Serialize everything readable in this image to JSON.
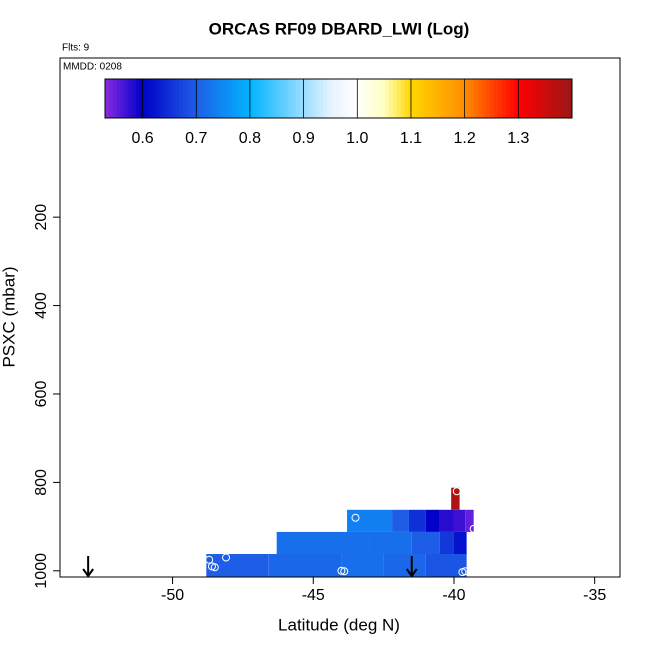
{
  "chart_data": {
    "type": "heatmap",
    "title": "ORCAS RF09 DBARD_LWI (Log)",
    "subtitle": "Flts: 9",
    "annotation": "MMDD: 0208",
    "x_label": "Latitude (deg N)",
    "y_label": "PSXC (mbar)",
    "xlim": [
      -54,
      -34.1
    ],
    "xticks": [
      -50,
      -45,
      -40,
      -35
    ],
    "ylim": [
      1014,
      -160
    ],
    "yticks": [
      200,
      400,
      600,
      800,
      1000
    ],
    "colorbar_lim": [
      0.53,
      1.4
    ],
    "colorbar_ticks": [
      0.6,
      0.7,
      0.8,
      0.9,
      {
        "value": 1,
        "label": "1.0"
      },
      1.1,
      1.2,
      1.3
    ],
    "colorscale": [
      [
        0.53,
        "#8a2be2"
      ],
      [
        0.6,
        "#0000c8"
      ],
      [
        0.7,
        "#1e5ee6"
      ],
      [
        0.8,
        "#00b4ff"
      ],
      [
        0.95,
        "#e6f2ff"
      ],
      [
        1,
        "#ffffff"
      ],
      [
        1.05,
        "#ffffc0"
      ],
      [
        1.1,
        "#ffd700"
      ],
      [
        1.2,
        "#ff8c00"
      ],
      [
        1.3,
        "#ff0000"
      ],
      [
        1.4,
        "#9a1818"
      ]
    ],
    "rows": [
      {
        "p_range": [
          962,
          1014
        ],
        "lat_edges": [
          -48.8,
          -46.6,
          -44,
          -42.5,
          -41,
          -39.55
        ],
        "values": [
          0.7,
          0.71,
          0.72,
          0.71,
          0.69
        ]
      },
      {
        "p_range": [
          912,
          962
        ],
        "lat_edges": [
          -46.3,
          -43,
          -41.5,
          -40.5,
          -40,
          -39.55
        ],
        "values": [
          0.72,
          0.72,
          0.7,
          0.66,
          0.62
        ]
      },
      {
        "p_range": [
          862,
          912
        ],
        "lat_edges": [
          -43.8,
          -42.2,
          -41.6,
          -41,
          -40.5,
          -40,
          -39.6,
          -39.3
        ],
        "values": [
          0.74,
          0.7,
          0.65,
          0.6,
          0.58,
          0.57,
          0.55
        ]
      },
      {
        "p_range": [
          812,
          862
        ],
        "lat_edges": [
          -40.1,
          -39.8
        ],
        "values": [
          1.38
        ]
      }
    ],
    "points": {
      "x": [
        -48.7,
        -48.1,
        -48.6,
        -48.5,
        -43.5,
        -44,
        -43.9,
        -39.9,
        -39.3,
        -39.7,
        -39.6
      ],
      "y": [
        975,
        970,
        990,
        992,
        880,
        1000,
        1001,
        820,
        905,
        1003,
        1001
      ]
    },
    "arrows_x": [
      -53,
      -41.5
    ]
  }
}
